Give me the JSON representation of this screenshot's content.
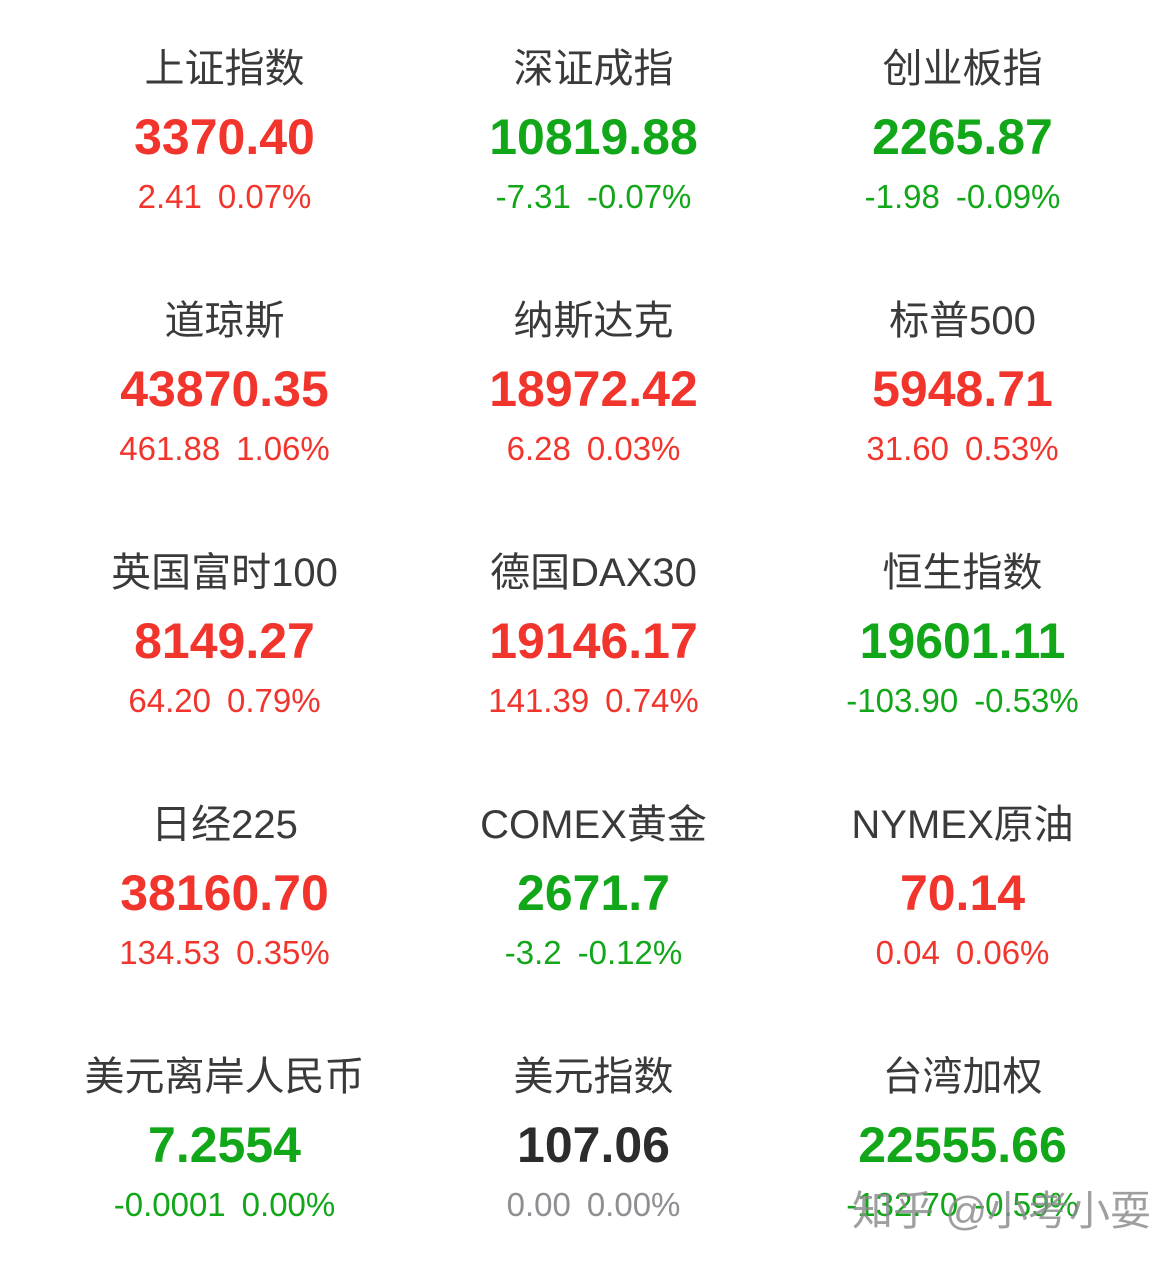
{
  "colors": {
    "up": "#f1342c",
    "down": "#12a619",
    "flat_value": "#2c2c2e",
    "flat_change": "#8e8e93",
    "title": "#3a3a3c",
    "background": "#ffffff",
    "watermark": "#8a8a8e"
  },
  "watermark": {
    "text": "知乎 @小考小耍"
  },
  "cards": [
    {
      "name": "上证指数",
      "value": "3370.40",
      "change": "2.41",
      "change_pct": "0.07%",
      "trend": "up"
    },
    {
      "name": "深证成指",
      "value": "10819.88",
      "change": "-7.31",
      "change_pct": "-0.07%",
      "trend": "down"
    },
    {
      "name": "创业板指",
      "value": "2265.87",
      "change": "-1.98",
      "change_pct": "-0.09%",
      "trend": "down"
    },
    {
      "name": "道琼斯",
      "value": "43870.35",
      "change": "461.88",
      "change_pct": "1.06%",
      "trend": "up"
    },
    {
      "name": "纳斯达克",
      "value": "18972.42",
      "change": "6.28",
      "change_pct": "0.03%",
      "trend": "up"
    },
    {
      "name": "标普500",
      "value": "5948.71",
      "change": "31.60",
      "change_pct": "0.53%",
      "trend": "up"
    },
    {
      "name": "英国富时100",
      "value": "8149.27",
      "change": "64.20",
      "change_pct": "0.79%",
      "trend": "up"
    },
    {
      "name": "德国DAX30",
      "value": "19146.17",
      "change": "141.39",
      "change_pct": "0.74%",
      "trend": "up"
    },
    {
      "name": "恒生指数",
      "value": "19601.11",
      "change": "-103.90",
      "change_pct": "-0.53%",
      "trend": "down"
    },
    {
      "name": "日经225",
      "value": "38160.70",
      "change": "134.53",
      "change_pct": "0.35%",
      "trend": "up"
    },
    {
      "name": "COMEX黄金",
      "value": "2671.7",
      "change": "-3.2",
      "change_pct": "-0.12%",
      "trend": "down"
    },
    {
      "name": "NYMEX原油",
      "value": "70.14",
      "change": "0.04",
      "change_pct": "0.06%",
      "trend": "up"
    },
    {
      "name": "美元离岸人民币",
      "value": "7.2554",
      "change": "-0.0001",
      "change_pct": "0.00%",
      "trend": "down"
    },
    {
      "name": "美元指数",
      "value": "107.06",
      "change": "0.00",
      "change_pct": "0.00%",
      "trend": "flat"
    },
    {
      "name": "台湾加权",
      "value": "22555.66",
      "change": "-132.70",
      "change_pct": "-0.59%",
      "trend": "down"
    }
  ]
}
